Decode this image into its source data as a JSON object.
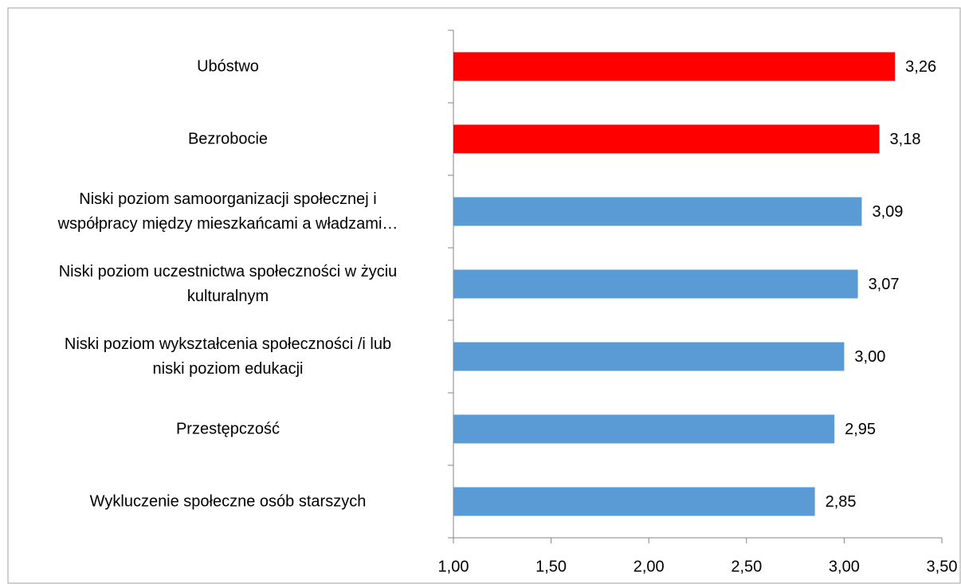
{
  "chart_data": {
    "type": "barh",
    "categories": [
      "Ubóstwo",
      "Bezrobocie",
      "Niski poziom samoorganizacji społecznej i\nwspółpracy między mieszkańcami  a władzami…",
      "Niski poziom uczestnictwa społeczności w życiu\nkulturalnym",
      "Niski poziom wykształcenia społeczności  /i lub\nniski poziom edukacji",
      "Przestępczość",
      "Wykluczenie społeczne osób starszych"
    ],
    "values": [
      3.26,
      3.18,
      3.09,
      3.07,
      3.0,
      2.95,
      2.85
    ],
    "value_labels": [
      "3,26",
      "3,18",
      "3,09",
      "3,07",
      "3,00",
      "2,95",
      "2,85"
    ],
    "colors": [
      "#ff0000",
      "#ff0000",
      "#5b9bd5",
      "#5b9bd5",
      "#5b9bd5",
      "#5b9bd5",
      "#5b9bd5"
    ],
    "xlim": [
      1.0,
      3.5
    ],
    "xticks": [
      {
        "value": 1.0,
        "label": "1,00"
      },
      {
        "value": 1.5,
        "label": "1,50"
      },
      {
        "value": 2.0,
        "label": "2,00"
      },
      {
        "value": 2.5,
        "label": "2,50"
      },
      {
        "value": 3.0,
        "label": "3,00"
      },
      {
        "value": 3.5,
        "label": "3,50"
      }
    ],
    "grid": false
  }
}
